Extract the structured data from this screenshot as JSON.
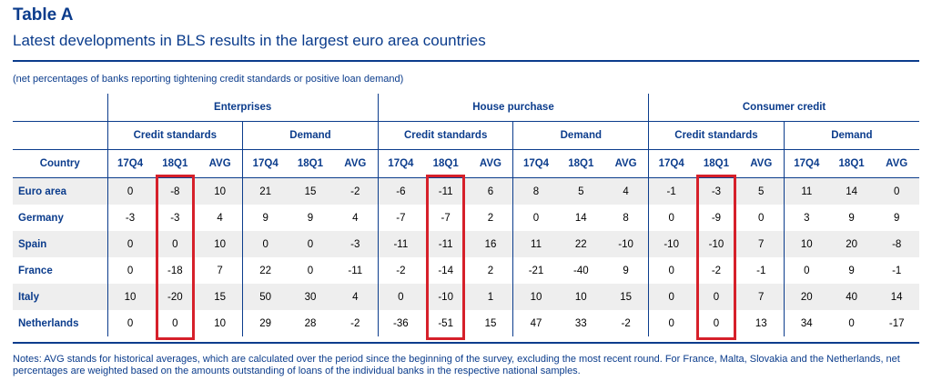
{
  "header": {
    "title": "Table A",
    "subtitle": "Latest developments in BLS results in the largest euro area countries",
    "note": "(net percentages of banks reporting tightening credit standards or positive loan demand)"
  },
  "table": {
    "country_header": "Country",
    "groups": [
      "Enterprises",
      "House purchase",
      "Consumer credit"
    ],
    "subgroups": [
      "Credit standards",
      "Demand"
    ],
    "periods": [
      "17Q4",
      "18Q1",
      "AVG"
    ],
    "rows": [
      {
        "country": "Euro area",
        "values": [
          "0",
          "-8",
          "10",
          "21",
          "15",
          "-2",
          "-6",
          "-11",
          "6",
          "8",
          "5",
          "4",
          "-1",
          "-3",
          "5",
          "11",
          "14",
          "0"
        ]
      },
      {
        "country": "Germany",
        "values": [
          "-3",
          "-3",
          "4",
          "9",
          "9",
          "4",
          "-7",
          "-7",
          "2",
          "0",
          "14",
          "8",
          "0",
          "-9",
          "0",
          "3",
          "9",
          "9"
        ]
      },
      {
        "country": "Spain",
        "values": [
          "0",
          "0",
          "10",
          "0",
          "0",
          "-3",
          "-11",
          "-11",
          "16",
          "11",
          "22",
          "-10",
          "-10",
          "-10",
          "7",
          "10",
          "20",
          "-8"
        ]
      },
      {
        "country": "France",
        "values": [
          "0",
          "-18",
          "7",
          "22",
          "0",
          "-11",
          "-2",
          "-14",
          "2",
          "-21",
          "-40",
          "9",
          "0",
          "-2",
          "-1",
          "0",
          "9",
          "-1"
        ]
      },
      {
        "country": "Italy",
        "values": [
          "10",
          "-20",
          "15",
          "50",
          "30",
          "4",
          "0",
          "-10",
          "1",
          "10",
          "10",
          "15",
          "0",
          "0",
          "7",
          "20",
          "40",
          "14"
        ]
      },
      {
        "country": "Netherlands",
        "values": [
          "0",
          "0",
          "10",
          "29",
          "28",
          "-2",
          "-36",
          "-51",
          "15",
          "47",
          "33",
          "-2",
          "0",
          "0",
          "13",
          "34",
          "0",
          "-17"
        ]
      }
    ]
  },
  "notes": "Notes: AVG stands for historical averages, which are calculated over the period since the beginning of the survey, excluding the most recent round. For France, Malta, Slovakia and the Netherlands, net percentages are weighted based on the amounts outstanding of loans of the individual banks in the respective national samples.",
  "colors": {
    "accent": "#0b3c8c",
    "highlight": "#d6202a",
    "row_shade": "#eeeeee"
  }
}
